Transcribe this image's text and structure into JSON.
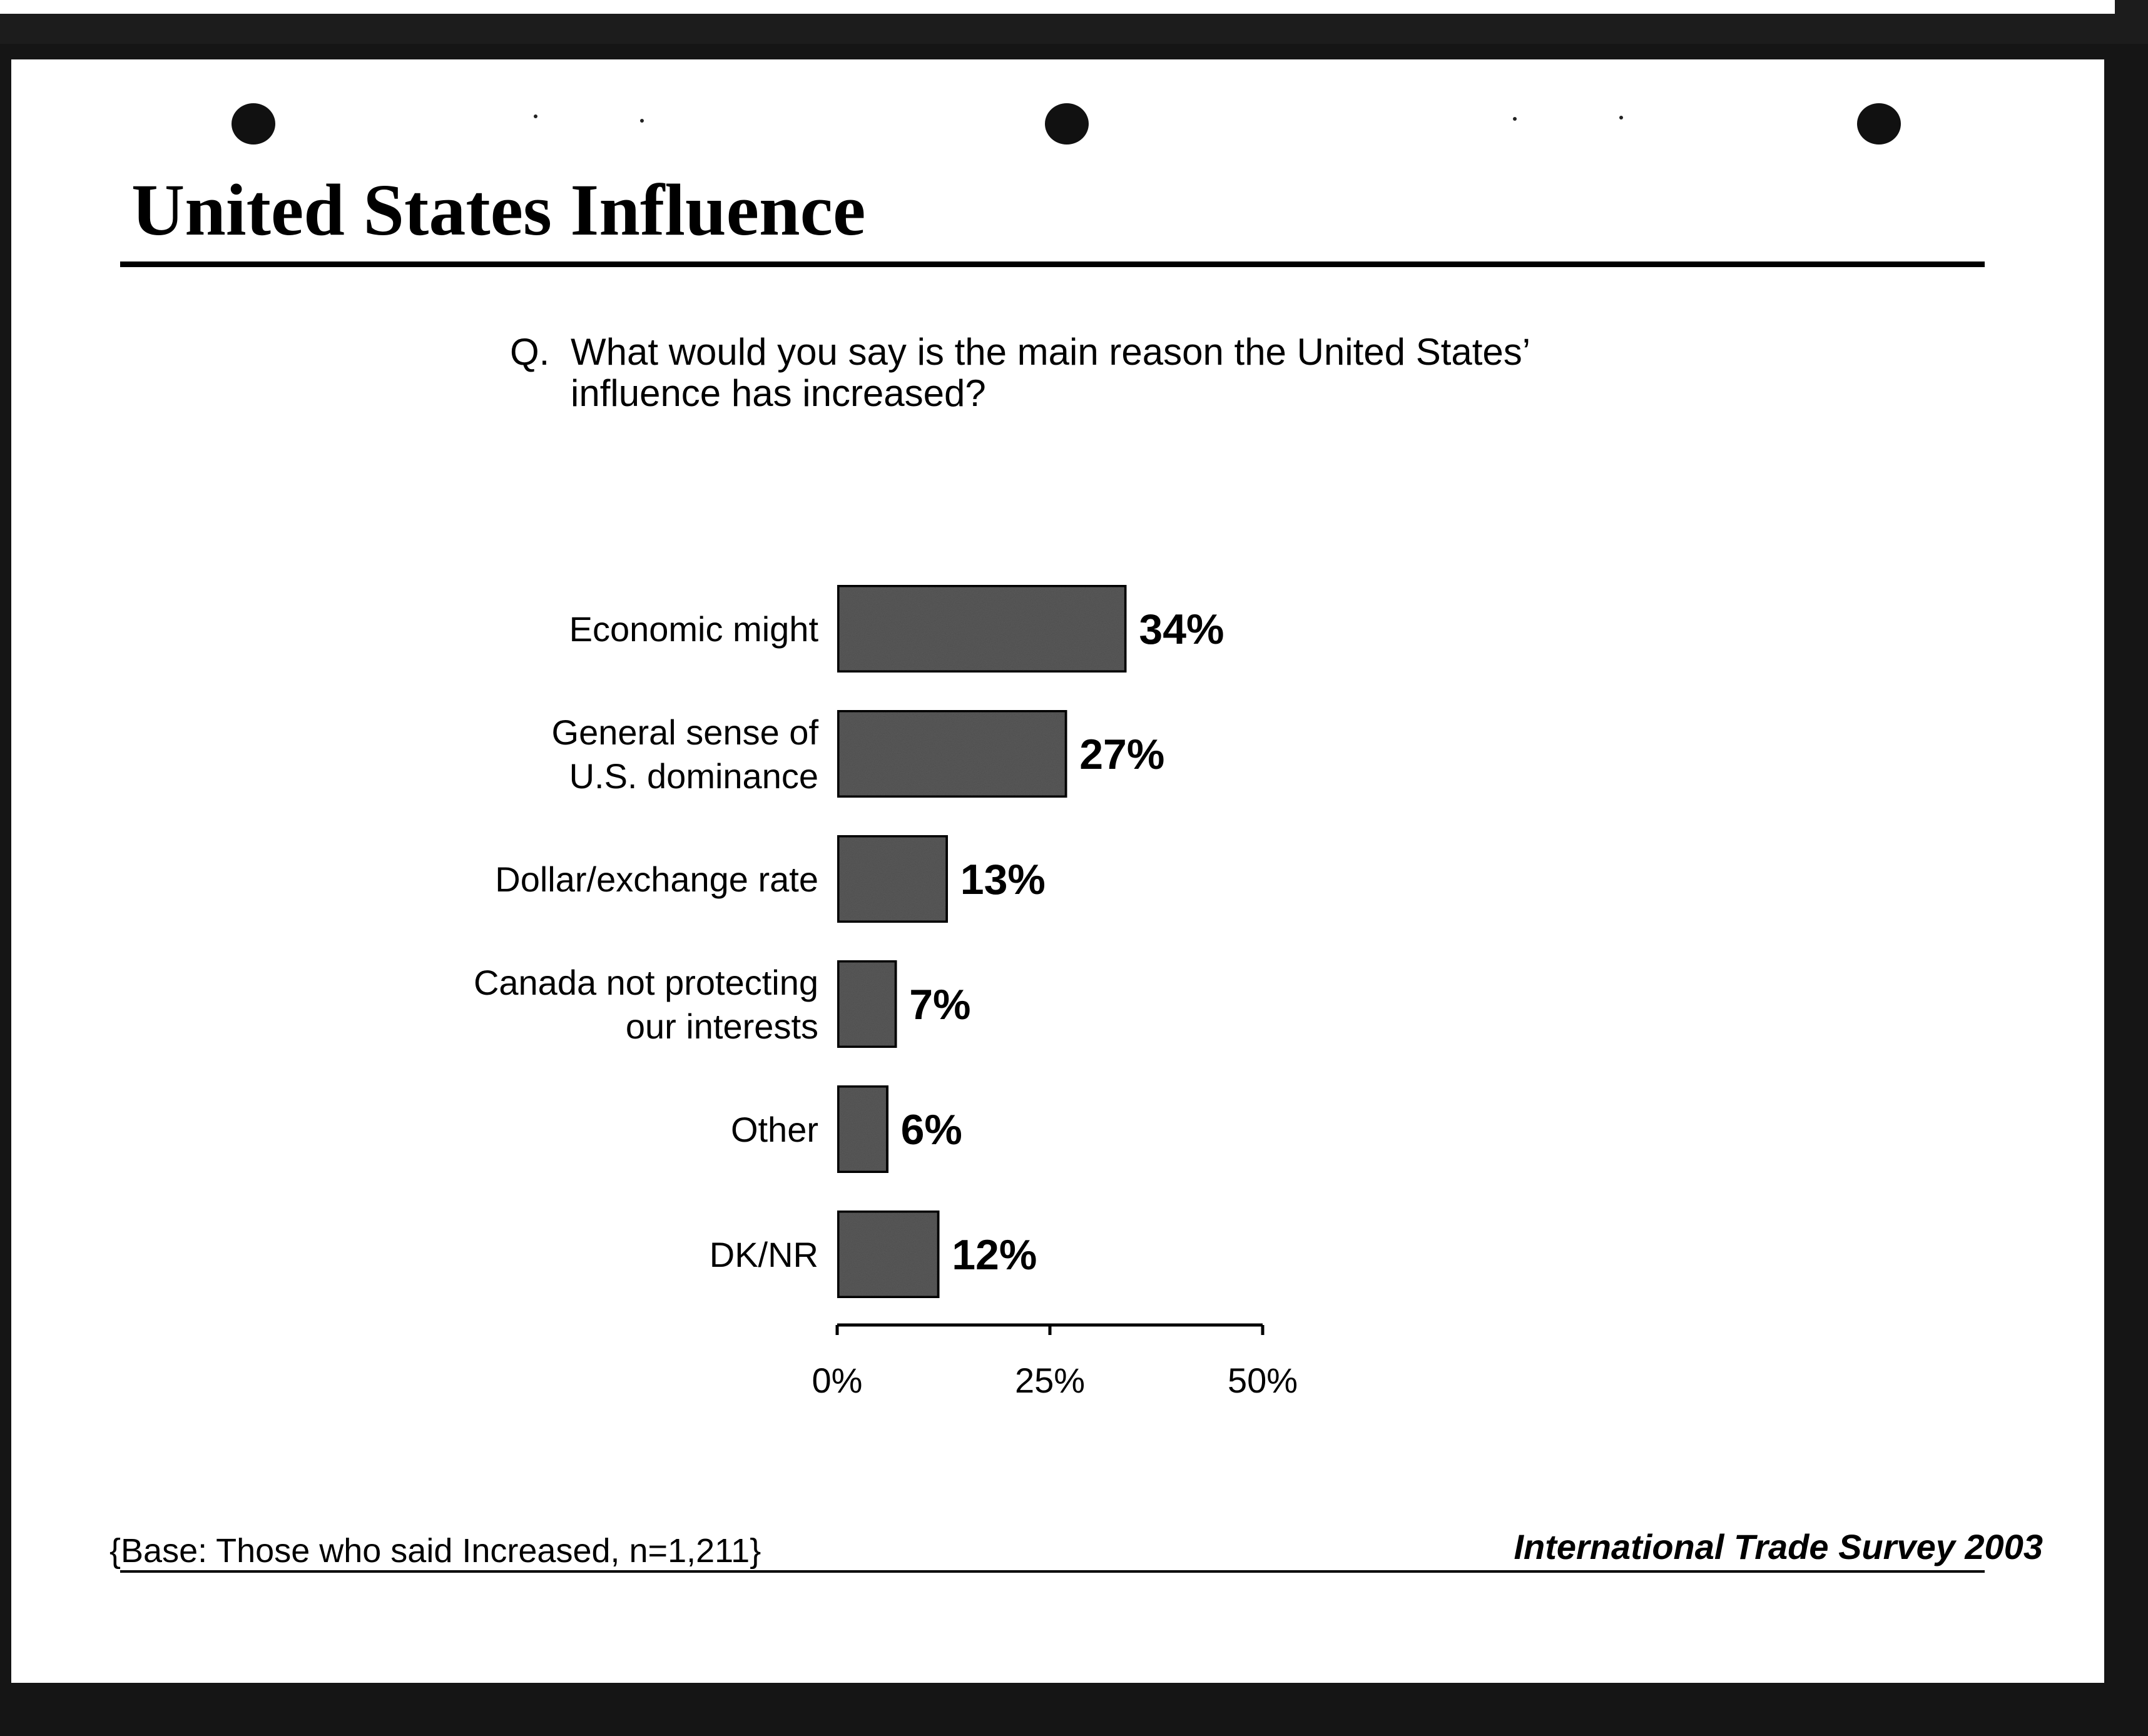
{
  "title": "United States Influence",
  "question": {
    "prefix": "Q.",
    "text": "What would you say is the main reason the United States’ influence has increased?"
  },
  "chart_data": {
    "type": "bar",
    "orientation": "horizontal",
    "categories": [
      [
        "Economic might"
      ],
      [
        "General sense of",
        "U.S. dominance"
      ],
      [
        "Dollar/exchange rate"
      ],
      [
        "Canada not protecting",
        "our interests"
      ],
      [
        "Other"
      ],
      [
        "DK/NR"
      ]
    ],
    "values": [
      34,
      27,
      13,
      7,
      6,
      12
    ],
    "value_labels": [
      "34%",
      "27%",
      "13%",
      "7%",
      "6%",
      "12%"
    ],
    "xlim": [
      0,
      50
    ],
    "xticks": [
      0,
      25,
      50
    ],
    "xtick_labels": [
      "0%",
      "25%",
      "50%"
    ],
    "grid": false,
    "bar_color": "#5a5a5a"
  },
  "footnote": "{Base: Those who said Increased, n=1,211}",
  "source": "International Trade Survey 2003"
}
